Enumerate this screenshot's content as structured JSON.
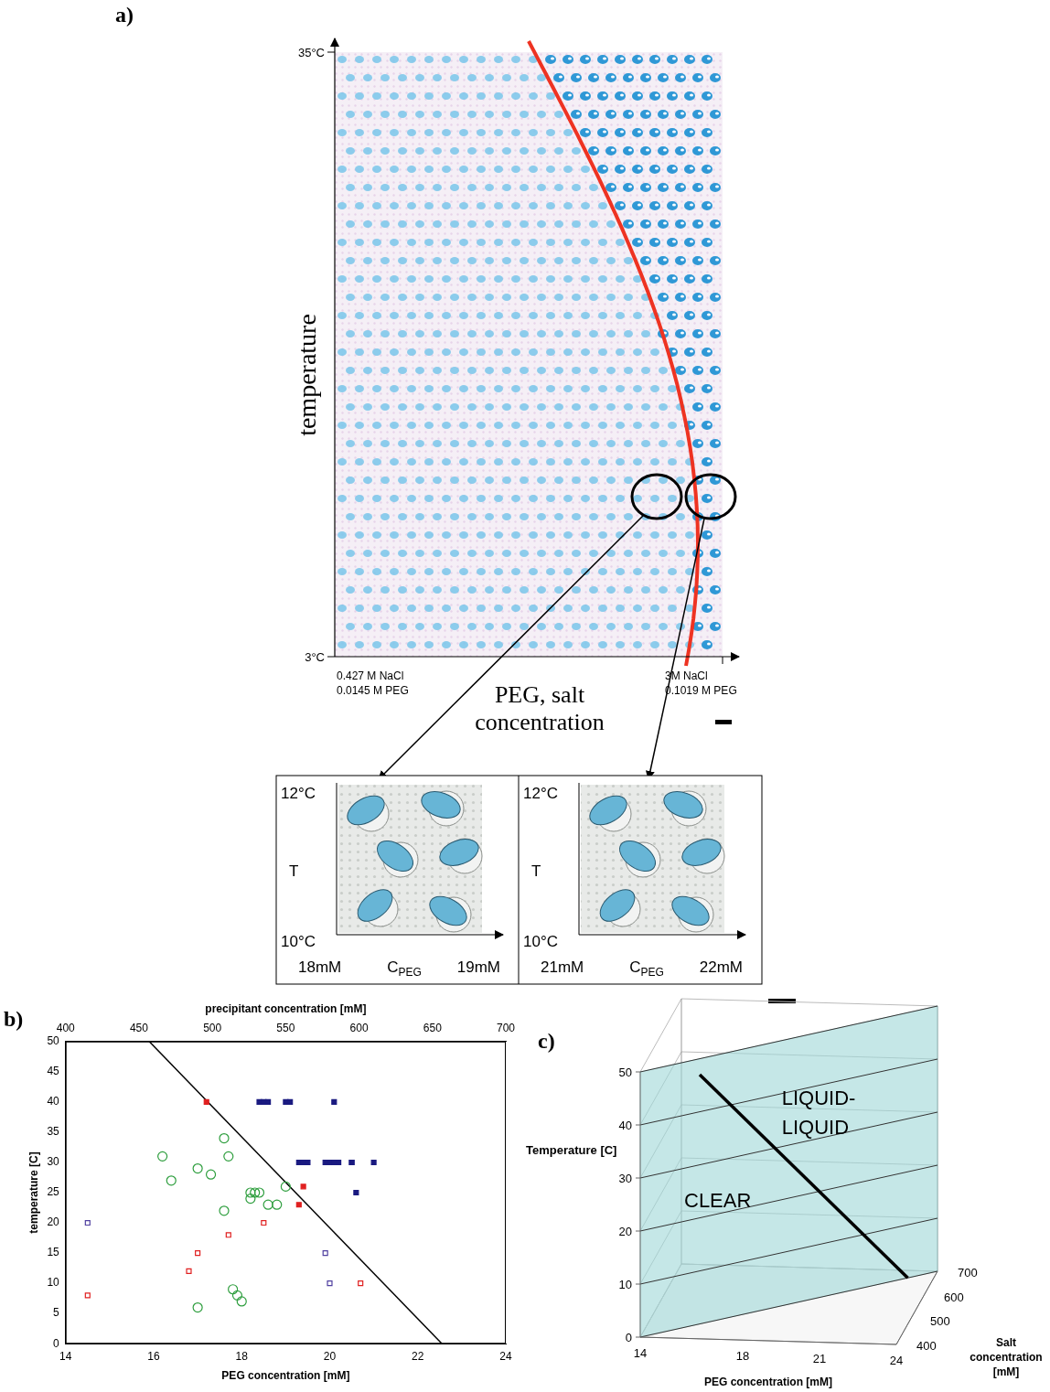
{
  "panel_a": {
    "label": "a)",
    "y_axis_title": "temperature",
    "y_ticks": [
      "35°C",
      "3°C"
    ],
    "x_axis_title_lines": [
      "PEG, salt",
      "concentration"
    ],
    "x_start_lines": [
      "0.427 M NaCl",
      "0.0145 M PEG"
    ],
    "x_end_lines": [
      "3M NaCl",
      "0.1019 M PEG"
    ],
    "insets": [
      {
        "t_top": "12°C",
        "t_label": "T",
        "t_bottom": "10°C",
        "c_left": "18mM",
        "c_label": {
          "main": "C",
          "sub": "PEG"
        },
        "c_right": "19mM"
      },
      {
        "t_top": "12°C",
        "t_label": "T",
        "t_bottom": "10°C",
        "c_left": "21mM",
        "c_label": {
          "main": "C",
          "sub": "PEG"
        },
        "c_right": "22mM"
      }
    ]
  },
  "chart_data": {
    "type": "scatter",
    "label": "b)",
    "x_title": "PEG concentration [mM]",
    "x2_title": "precipitant concentration [mM]",
    "y_title": "temperature [C]",
    "xlim": [
      14,
      24
    ],
    "xticks": [
      14,
      16,
      18,
      20,
      22,
      24
    ],
    "x2lim": [
      400,
      700
    ],
    "x2ticks": [
      400,
      450,
      500,
      550,
      600,
      650,
      700
    ],
    "ylim": [
      0,
      50
    ],
    "yticks": [
      0,
      5,
      10,
      15,
      20,
      25,
      30,
      35,
      40,
      45,
      50
    ],
    "grid": false,
    "series": [
      {
        "color": "#2e9e3e",
        "marker": "circle-open",
        "x": [
          16.2,
          16.4,
          17.0,
          17.3,
          17.6,
          17.7,
          17.6,
          18.2,
          18.2,
          18.3,
          18.4,
          18.6,
          18.8,
          19.0,
          17.8,
          17.9,
          18.0,
          17.0
        ],
        "values": [
          31,
          27,
          29,
          28,
          34,
          31,
          22,
          25,
          24,
          25,
          25,
          23,
          23,
          26,
          9,
          8,
          7,
          6
        ]
      },
      {
        "color": "#e02020",
        "marker": "square-open",
        "x": [
          14.5,
          16.8,
          17.0,
          17.7,
          18.5,
          20.7
        ],
        "values": [
          8,
          12,
          15,
          18,
          20,
          10
        ]
      },
      {
        "color": "#5040a0",
        "marker": "square-open",
        "x": [
          14.5,
          19.9,
          20.0
        ],
        "values": [
          20,
          15,
          10
        ]
      },
      {
        "color": "#e02020",
        "marker": "square",
        "x": [
          17.2,
          19.4,
          19.3
        ],
        "values": [
          40,
          26,
          23
        ]
      },
      {
        "color": "#1a1a80",
        "marker": "square",
        "x": [
          18.4,
          18.5,
          18.6,
          19.0,
          19.1,
          20.1,
          19.3,
          19.4,
          19.5,
          19.9,
          20.0,
          20.1,
          20.2,
          20.5,
          20.5,
          21.0,
          20.6
        ],
        "values": [
          40,
          40,
          40,
          40,
          40,
          40,
          30,
          30,
          30,
          30,
          30,
          30,
          30,
          30,
          30,
          30,
          25
        ]
      },
      {
        "type": "line",
        "color": "#000000",
        "line_style": "solid",
        "marker": "none",
        "x": [
          15.9,
          22.55
        ],
        "values": [
          50,
          0
        ]
      }
    ]
  },
  "panel_c": {
    "label": "c)",
    "regions": [
      [
        "LIQUID-",
        "LIQUID"
      ],
      [
        "CLEAR"
      ]
    ],
    "t_title": "Temperature [C]",
    "t_ticks": [
      0,
      10,
      20,
      30,
      40,
      50
    ],
    "peg_title": "PEG concentration [mM]",
    "peg_ticks": [
      14,
      18,
      21,
      24
    ],
    "salt_title_lines": [
      "Salt",
      "concentration",
      "[mM]"
    ],
    "salt_ticks": [
      400,
      500,
      600,
      700
    ]
  }
}
